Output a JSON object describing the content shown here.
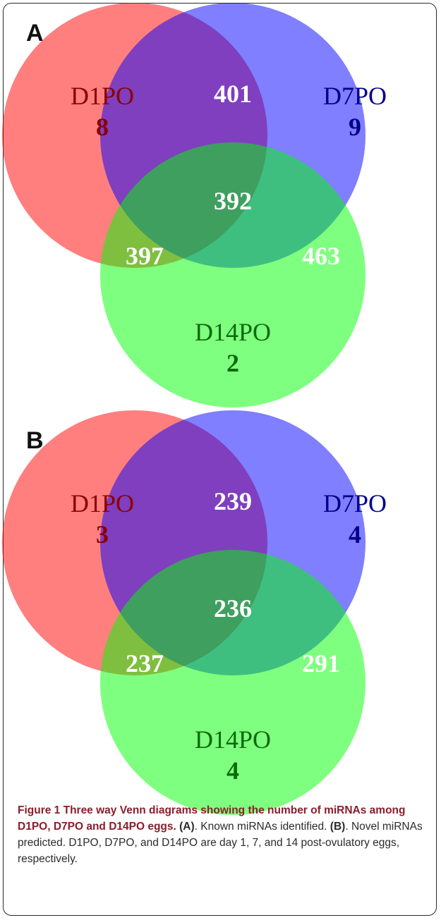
{
  "colors": {
    "set1": "#ff7070",
    "set2": "#7a7aff",
    "set3": "#6fff6f",
    "set1_text": "#8b0000",
    "set2_text": "#00008b",
    "set3_text": "#0b6b0b",
    "count_white": "#ffffff",
    "caption_title": "#8b1d2c"
  },
  "panels": [
    {
      "letter": "A",
      "sets": [
        {
          "label": "D1PO",
          "unique": "8"
        },
        {
          "label": "D7PO",
          "unique": "9"
        },
        {
          "label": "D14PO",
          "unique": "2"
        }
      ],
      "intersections": {
        "d1_d7": "401",
        "d1_d14": "397",
        "d7_d14": "463",
        "all": "392"
      }
    },
    {
      "letter": "B",
      "sets": [
        {
          "label": "D1PO",
          "unique": "3"
        },
        {
          "label": "D7PO",
          "unique": "4"
        },
        {
          "label": "D14PO",
          "unique": "4"
        }
      ],
      "intersections": {
        "d1_d7": "239",
        "d1_d14": "237",
        "d7_d14": "291",
        "all": "236"
      }
    }
  ],
  "caption": {
    "title": "Figure 1 Three way Venn diagrams showing the number of miRNAs among D1PO, D7PO and D14PO eggs.",
    "part_a_label": "(A)",
    "part_a_text": ". Known miRNAs identified.",
    "part_b_label": "(B)",
    "part_b_text": ". Novel miRNAs predicted. D1PO, D7PO, and D14PO are day 1, 7, and 14 post-ovulatory eggs, respectively."
  }
}
